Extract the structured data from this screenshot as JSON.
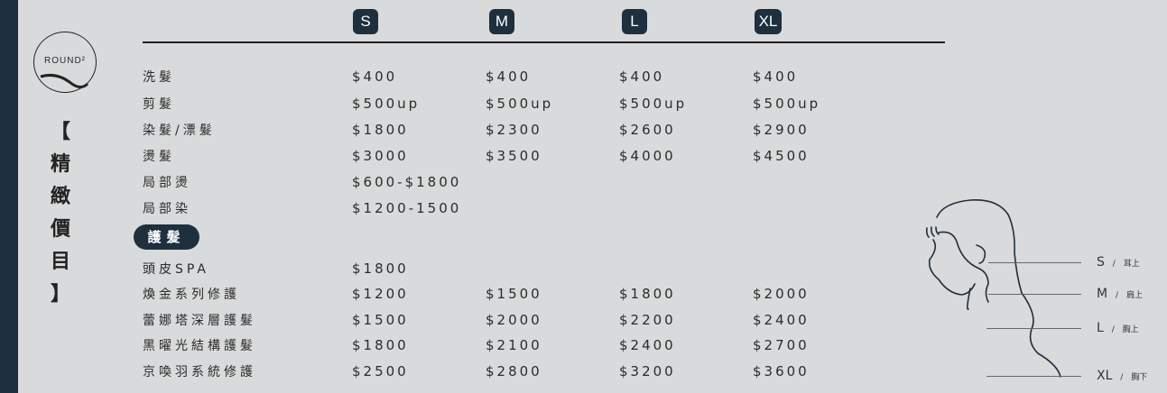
{
  "brand": "ROUND²",
  "title": "【精緻價目】",
  "sizes": [
    "S",
    "M",
    "L",
    "XL"
  ],
  "services": [
    {
      "name": "洗髮",
      "prices": [
        "$400",
        "$400",
        "$400",
        "$400"
      ]
    },
    {
      "name": "剪髮",
      "prices": [
        "$500up",
        "$500up",
        "$500up",
        "$500up"
      ]
    },
    {
      "name": "染髮/漂髮",
      "prices": [
        "$1800",
        "$2300",
        "$2600",
        "$2900"
      ]
    },
    {
      "name": "燙髮",
      "prices": [
        "$3000",
        "$3500",
        "$4000",
        "$4500"
      ]
    },
    {
      "name": "局部燙",
      "prices": [
        "$600-$1800"
      ]
    },
    {
      "name": "局部染",
      "prices": [
        "$1200-1500"
      ]
    }
  ],
  "care_section": "護髮",
  "care": [
    {
      "name": "頭皮SPA",
      "prices": [
        "$1800"
      ]
    },
    {
      "name": "煥金系列修護",
      "prices": [
        "$1200",
        "$1500",
        "$1800",
        "$2000"
      ]
    },
    {
      "name": "蕾娜塔深層護髮",
      "prices": [
        "$1500",
        "$2000",
        "$2200",
        "$2400"
      ]
    },
    {
      "name": "黑曜光結構護髮",
      "prices": [
        "$1800",
        "$2100",
        "$2400",
        "$2700"
      ]
    },
    {
      "name": "京喚羽系統修護",
      "prices": [
        "$2500",
        "$2800",
        "$3200",
        "$3600"
      ]
    }
  ],
  "lengths": [
    {
      "size": "S",
      "desc": "耳上"
    },
    {
      "size": "M",
      "desc": "肩上"
    },
    {
      "size": "L",
      "desc": "胸上"
    },
    {
      "size": "XL",
      "desc": "胸下"
    }
  ],
  "colors": {
    "accent": "#1e2f3e",
    "background": "#d9dadb"
  }
}
